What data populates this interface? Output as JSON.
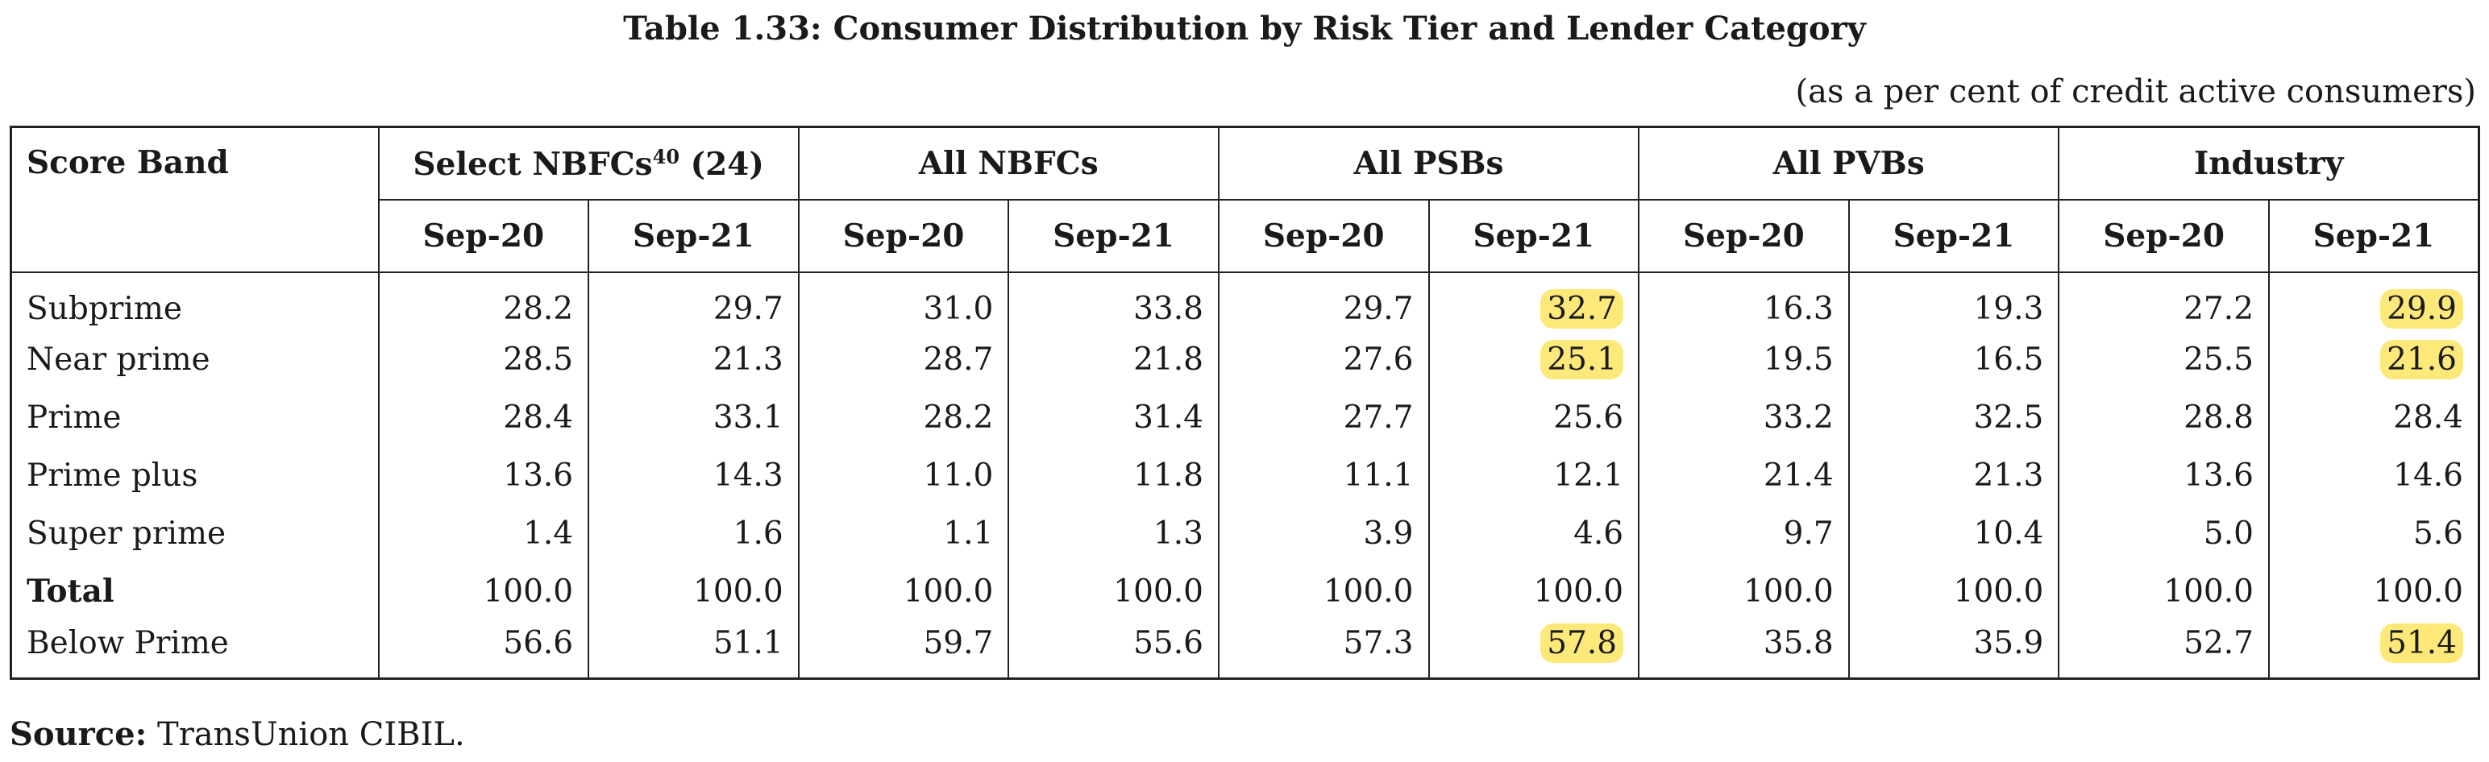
{
  "title": "Table 1.33: Consumer Distribution by Risk Tier and Lender Category",
  "unit_note": "(as a per cent of credit active consumers)",
  "header": {
    "score_band": "Score Band",
    "groups": [
      {
        "name": "Select NBFCs",
        "sup": "40",
        "suffix": " (24)"
      },
      {
        "name": "All NBFCs",
        "sup": "",
        "suffix": ""
      },
      {
        "name": "All PSBs",
        "sup": "",
        "suffix": ""
      },
      {
        "name": "All PVBs",
        "sup": "",
        "suffix": ""
      },
      {
        "name": "Industry",
        "sup": "",
        "suffix": ""
      }
    ],
    "periods": [
      "Sep-20",
      "Sep-21"
    ]
  },
  "rows": [
    {
      "label": "Subprime",
      "bold": false,
      "values": [
        "28.2",
        "29.7",
        "31.0",
        "33.8",
        "29.7",
        "32.7",
        "16.3",
        "19.3",
        "27.2",
        "29.9"
      ],
      "highlight": [
        5,
        9
      ]
    },
    {
      "label": "Near prime",
      "bold": false,
      "values": [
        "28.5",
        "21.3",
        "28.7",
        "21.8",
        "27.6",
        "25.1",
        "19.5",
        "16.5",
        "25.5",
        "21.6"
      ],
      "highlight": [
        5,
        9
      ]
    },
    {
      "label": "Prime",
      "bold": false,
      "values": [
        "28.4",
        "33.1",
        "28.2",
        "31.4",
        "27.7",
        "25.6",
        "33.2",
        "32.5",
        "28.8",
        "28.4"
      ],
      "highlight": []
    },
    {
      "label": "Prime plus",
      "bold": false,
      "values": [
        "13.6",
        "14.3",
        "11.0",
        "11.8",
        "11.1",
        "12.1",
        "21.4",
        "21.3",
        "13.6",
        "14.6"
      ],
      "highlight": []
    },
    {
      "label": "Super prime",
      "bold": false,
      "values": [
        "1.4",
        "1.6",
        "1.1",
        "1.3",
        "3.9",
        "4.6",
        "9.7",
        "10.4",
        "5.0",
        "5.6"
      ],
      "highlight": []
    },
    {
      "label": "Total",
      "bold": true,
      "values": [
        "100.0",
        "100.0",
        "100.0",
        "100.0",
        "100.0",
        "100.0",
        "100.0",
        "100.0",
        "100.0",
        "100.0"
      ],
      "highlight": []
    },
    {
      "label": "Below Prime",
      "bold": false,
      "values": [
        "56.6",
        "51.1",
        "59.7",
        "55.6",
        "57.3",
        "57.8",
        "35.8",
        "35.9",
        "52.7",
        "51.4"
      ],
      "highlight": [
        5,
        9
      ]
    }
  ],
  "highlight_color": "#fde97a",
  "source": {
    "label": "Source:",
    "text": " TransUnion CIBIL."
  }
}
